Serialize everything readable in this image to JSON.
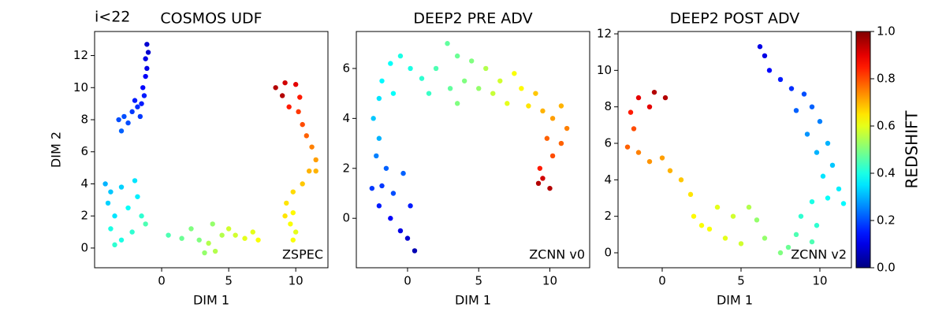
{
  "chart_data": [
    {
      "type": "scatter",
      "title": "COSMOS UDF",
      "annotations": [
        "i<22",
        "ZSPEC"
      ],
      "xlabel": "DIM 1",
      "ylabel": "DIM 2",
      "xlim": [
        -5.0,
        12.4
      ],
      "ylim": [
        -1.23,
        13.5
      ],
      "xticks": [
        0,
        5,
        10
      ],
      "yticks": [
        0,
        2,
        4,
        6,
        8,
        10,
        12
      ],
      "colormap": "jet",
      "clim": [
        0,
        1
      ],
      "x": [
        -1.1,
        -1.0,
        -1.2,
        -1.1,
        -1.2,
        -1.4,
        -1.3,
        -1.5,
        -1.8,
        -2.2,
        -2.8,
        -3.2,
        -2.5,
        -3.0,
        -2.0,
        -1.6,
        8.5,
        9.2,
        10.0,
        9.0,
        10.3,
        9.5,
        10.2,
        10.5,
        10.8,
        11.2,
        11.5,
        11.0,
        11.5,
        10.5,
        9.8,
        9.3,
        9.8,
        9.6,
        10.0,
        9.8,
        9.2,
        -4.2,
        -3.8,
        -3.0,
        -2.0,
        -1.8,
        -4.0,
        -3.5,
        -2.5,
        -1.5,
        -3.8,
        -3.0,
        -2.2,
        -3.5,
        -1.2,
        0.5,
        1.5,
        2.2,
        2.8,
        3.2,
        3.8,
        3.5,
        4.5,
        5.0,
        5.5,
        6.2,
        6.8,
        7.2,
        4.0
      ],
      "y": [
        12.7,
        12.2,
        11.8,
        11.2,
        10.7,
        10.0,
        9.5,
        9.0,
        8.8,
        8.5,
        8.2,
        8.0,
        7.8,
        7.3,
        9.2,
        8.2,
        10.0,
        10.3,
        10.2,
        9.5,
        9.4,
        8.8,
        8.5,
        7.7,
        7.0,
        6.3,
        5.5,
        4.8,
        4.8,
        4.0,
        3.5,
        2.8,
        2.2,
        1.5,
        1.0,
        0.5,
        2.0,
        4.0,
        3.5,
        3.8,
        4.2,
        3.2,
        2.8,
        2.0,
        2.5,
        2.0,
        1.2,
        0.5,
        1.0,
        0.2,
        1.5,
        0.8,
        0.6,
        1.2,
        0.5,
        -0.3,
        1.5,
        0.3,
        0.8,
        1.2,
        0.8,
        0.6,
        1.0,
        0.5,
        -0.2
      ],
      "z": [
        0.08,
        0.08,
        0.1,
        0.1,
        0.12,
        0.13,
        0.15,
        0.15,
        0.17,
        0.18,
        0.2,
        0.2,
        0.2,
        0.22,
        0.15,
        0.18,
        0.95,
        0.92,
        0.9,
        0.95,
        0.85,
        0.85,
        0.82,
        0.8,
        0.78,
        0.75,
        0.72,
        0.7,
        0.7,
        0.68,
        0.66,
        0.65,
        0.63,
        0.62,
        0.6,
        0.62,
        0.65,
        0.3,
        0.32,
        0.33,
        0.35,
        0.36,
        0.33,
        0.35,
        0.38,
        0.42,
        0.4,
        0.4,
        0.42,
        0.42,
        0.45,
        0.45,
        0.48,
        0.5,
        0.5,
        0.52,
        0.52,
        0.55,
        0.55,
        0.58,
        0.58,
        0.6,
        0.6,
        0.62,
        0.55
      ]
    },
    {
      "type": "scatter",
      "title": "DEEP2 PRE ADV",
      "annotations": [
        "ZCNN v0"
      ],
      "xlabel": "DIM 1",
      "xlim": [
        -3.6,
        12.8
      ],
      "ylim": [
        -1.98,
        7.48
      ],
      "xticks": [
        0,
        5,
        10
      ],
      "yticks": [
        0,
        2,
        4,
        6
      ],
      "colormap": "jet",
      "clim": [
        0,
        1
      ],
      "x": [
        0.5,
        0.0,
        -0.5,
        -1.2,
        -2.0,
        -2.5,
        -1.8,
        -1.0,
        -0.3,
        -1.5,
        0.2,
        -2.2,
        -2.0,
        -2.4,
        -2.0,
        -1.8,
        -1.2,
        -0.5,
        0.2,
        -1.0,
        1.0,
        2.0,
        2.8,
        3.5,
        3.0,
        4.0,
        4.5,
        5.0,
        5.5,
        6.0,
        6.5,
        7.0,
        7.5,
        8.0,
        8.5,
        9.0,
        9.5,
        10.2,
        10.8,
        11.2,
        10.8,
        10.2,
        9.8,
        9.3,
        9.5,
        10.0,
        9.2,
        1.5,
        3.5
      ],
      "y": [
        -1.3,
        -0.8,
        -0.5,
        0,
        0.5,
        1.2,
        1.3,
        1.0,
        1.8,
        2.0,
        0.5,
        2.5,
        3.2,
        4.0,
        4.8,
        5.5,
        6.2,
        6.5,
        6.0,
        5.0,
        5.6,
        6.0,
        7.0,
        6.5,
        5.2,
        5.5,
        6.3,
        5.2,
        6.0,
        5.0,
        5.5,
        4.6,
        5.8,
        5.2,
        4.5,
        5.0,
        4.3,
        4.0,
        4.5,
        3.6,
        3.0,
        2.5,
        3.2,
        2.0,
        1.6,
        1.2,
        1.4,
        5.0,
        4.6
      ],
      "z": [
        0.05,
        0.08,
        0.1,
        0.12,
        0.15,
        0.18,
        0.18,
        0.2,
        0.22,
        0.22,
        0.15,
        0.25,
        0.3,
        0.32,
        0.35,
        0.37,
        0.38,
        0.4,
        0.4,
        0.38,
        0.42,
        0.45,
        0.47,
        0.48,
        0.47,
        0.5,
        0.5,
        0.52,
        0.55,
        0.57,
        0.58,
        0.6,
        0.62,
        0.63,
        0.65,
        0.68,
        0.7,
        0.72,
        0.7,
        0.75,
        0.78,
        0.8,
        0.78,
        0.85,
        0.92,
        0.95,
        0.95,
        0.43,
        0.5
      ]
    },
    {
      "type": "scatter",
      "title": "DEEP2 POST ADV",
      "annotations": [
        "ZCNN v2"
      ],
      "xlabel": "DIM 1",
      "xlim": [
        -2.8,
        12.0
      ],
      "ylim": [
        -0.82,
        12.13
      ],
      "xticks": [
        0,
        5,
        10
      ],
      "yticks": [
        0,
        2,
        4,
        6,
        8,
        10,
        12
      ],
      "colormap": "jet",
      "clim": [
        0,
        1
      ],
      "x": [
        6.2,
        6.5,
        6.8,
        7.5,
        8.2,
        9.0,
        9.5,
        8.5,
        10.0,
        9.2,
        10.5,
        9.8,
        10.8,
        10.2,
        11.2,
        10.5,
        11.5,
        9.5,
        8.8,
        9.8,
        8.5,
        9.5,
        8.0,
        7.5,
        6.5,
        6.0,
        5.5,
        4.5,
        5.0,
        4.0,
        3.5,
        3.0,
        2.0,
        1.8,
        1.2,
        0.5,
        0.0,
        -0.8,
        -1.5,
        -2.2,
        -1.8,
        -2.0,
        -1.5,
        -0.5,
        0.2,
        -0.8,
        2.5
      ],
      "y": [
        11.3,
        10.8,
        10,
        9.5,
        9.0,
        8.7,
        8.0,
        7.8,
        7.2,
        6.5,
        6.0,
        5.5,
        4.8,
        4.2,
        3.5,
        3.0,
        2.7,
        2.8,
        2.0,
        1.5,
        1.0,
        0.6,
        0.3,
        0,
        0.8,
        1.8,
        2.5,
        2.0,
        0.5,
        0.8,
        2.5,
        1.3,
        2.0,
        3.2,
        4.0,
        4.5,
        5.2,
        5.0,
        5.5,
        5.8,
        6.8,
        7.7,
        8.5,
        8.8,
        8.5,
        8.0,
        1.5
      ],
      "z": [
        0.1,
        0.1,
        0.13,
        0.15,
        0.17,
        0.2,
        0.22,
        0.22,
        0.25,
        0.27,
        0.3,
        0.3,
        0.32,
        0.35,
        0.36,
        0.38,
        0.37,
        0.4,
        0.42,
        0.42,
        0.45,
        0.45,
        0.48,
        0.5,
        0.52,
        0.52,
        0.55,
        0.58,
        0.58,
        0.6,
        0.6,
        0.62,
        0.63,
        0.65,
        0.68,
        0.7,
        0.72,
        0.73,
        0.75,
        0.78,
        0.8,
        0.85,
        0.9,
        0.95,
        0.95,
        0.9,
        0.62
      ],
      "colorbar": {
        "label": "REDSHIFT",
        "ticks": [
          {
            "value": 0,
            "label": "0.0"
          },
          {
            "value": 0.2,
            "label": "0.2"
          },
          {
            "value": 0.4,
            "label": "0.4"
          },
          {
            "value": 0.6,
            "label": "0.6"
          },
          {
            "value": 0.8,
            "label": "0.8"
          },
          {
            "value": 1,
            "label": "1.0"
          }
        ]
      }
    }
  ]
}
